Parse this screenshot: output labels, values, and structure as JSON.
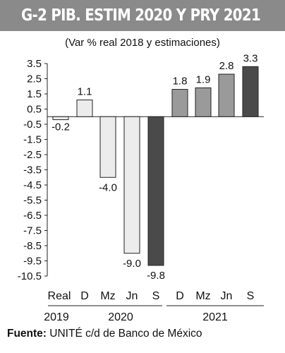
{
  "header": {
    "title": "G-2  PIB. ESTIM 2020 Y PRY 2021",
    "subtitle": "(Var % real 2018 y estimaciones)"
  },
  "source": {
    "label": "Fuente:",
    "text": "UNITÉ c/d de Banco de México"
  },
  "chart_data": {
    "type": "bar",
    "categories": [
      "Real",
      "D",
      "Mz",
      "Jn",
      "S",
      "D",
      "Mz",
      "Jn",
      "S"
    ],
    "groups": [
      {
        "label": "2019",
        "from": 0,
        "to": 0
      },
      {
        "label": "2020",
        "from": 1,
        "to": 4
      },
      {
        "label": "2021",
        "from": 5,
        "to": 8
      }
    ],
    "values": [
      -0.2,
      1.1,
      -4.0,
      -9.0,
      -9.8,
      1.8,
      1.9,
      2.8,
      3.3
    ],
    "value_labels": [
      "-0.2",
      "1.1",
      "-4.0",
      "-9.0",
      "-9.8",
      "1.8",
      "1.9",
      "2.8",
      "3.3"
    ],
    "bar_colors": [
      "#ececec",
      "#ececec",
      "#ececec",
      "#ececec",
      "#4a4a4a",
      "#9a9a9a",
      "#9a9a9a",
      "#9a9a9a",
      "#4a4a4a"
    ],
    "yticks": [
      "3.5",
      "2.5",
      "1.5",
      "0.5",
      "-0.5",
      "-1.5",
      "-2.5",
      "-3.5",
      "-4.5",
      "-5.5",
      "-6.5",
      "-7.5",
      "-8.5",
      "-9.5",
      "-10.5"
    ],
    "ylim": [
      -10.5,
      3.5
    ],
    "grid": false
  }
}
